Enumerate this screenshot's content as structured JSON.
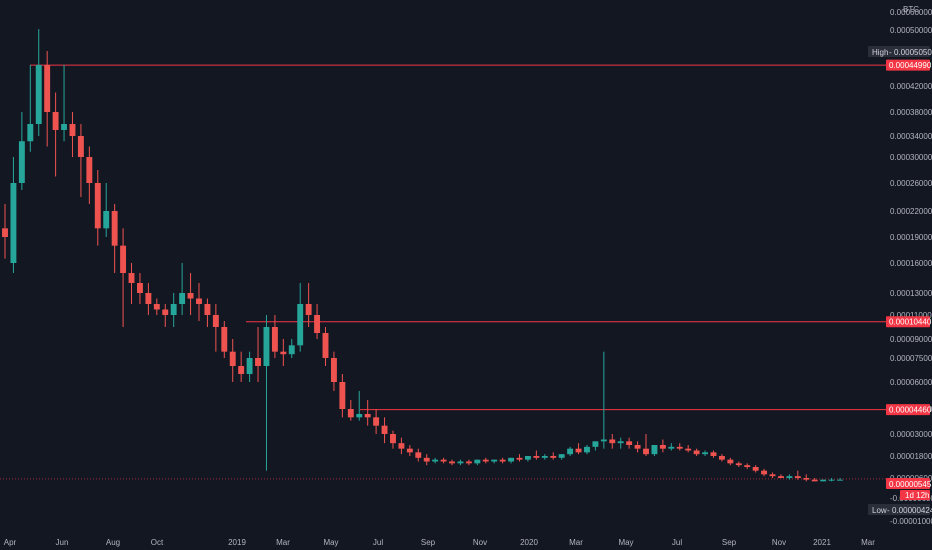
{
  "chart_data": {
    "type": "candlestick",
    "currency": "BTC",
    "x_ticks": [
      "Apr",
      "Jun",
      "Aug",
      "Oct",
      "2019",
      "Mar",
      "May",
      "Jul",
      "Sep",
      "Nov",
      "2020",
      "Mar",
      "May",
      "Jul",
      "Sep",
      "Nov",
      "2021",
      "Mar"
    ],
    "y_ticks": [
      "0.00060000",
      "0.00050000",
      "0.00042000",
      "0.00038000",
      "0.00034000",
      "0.00030000",
      "0.00026000",
      "0.00022000",
      "0.00019000",
      "0.00016000",
      "0.00013000",
      "0.00011000",
      "0.00009000",
      "0.00007500",
      "0.00006000",
      "0.00004500",
      "0.00003000",
      "0.00001800",
      "0.00000600",
      "-0.00000600",
      "-0.00001000"
    ],
    "high_label": "High",
    "high_value": "0.00050500",
    "low_label": "Low",
    "low_value": "0.00000424",
    "last_price": "0.00000545",
    "countdown": "1d 12h",
    "lines": [
      {
        "value": "0.00044990",
        "color": "#f23645"
      },
      {
        "value": "0.00010440",
        "color": "#f23645"
      },
      {
        "value": "0.00004460",
        "color": "#f23645"
      }
    ],
    "colors": {
      "up": "#26a69a",
      "down": "#ef5350",
      "background": "#131722",
      "last": "#f23645",
      "high_low_tag": "#2a2e39"
    },
    "candles": [
      [
        0.0002,
        0.00023,
        0.00019,
        0.000165
      ],
      [
        0.00016,
        0.0003,
        0.00026,
        0.00015
      ],
      [
        0.00026,
        0.00038,
        0.00033,
        0.00025
      ],
      [
        0.00033,
        0.00045,
        0.00036,
        0.00031
      ],
      [
        0.00036,
        0.000505,
        0.00045,
        0.00034
      ],
      [
        0.00045,
        0.00047,
        0.00038,
        0.00032
      ],
      [
        0.00038,
        0.00041,
        0.00035,
        0.00027
      ],
      [
        0.00035,
        0.00045,
        0.00036,
        0.00033
      ],
      [
        0.00036,
        0.00038,
        0.00034,
        0.0003
      ],
      [
        0.00034,
        0.00036,
        0.0003,
        0.00024
      ],
      [
        0.0003,
        0.00032,
        0.00026,
        0.00023
      ],
      [
        0.00026,
        0.00028,
        0.0002,
        0.00018
      ],
      [
        0.0002,
        0.00026,
        0.00022,
        0.00019
      ],
      [
        0.00022,
        0.00023,
        0.00018,
        0.00015
      ],
      [
        0.00018,
        0.0002,
        0.00015,
        0.0001
      ],
      [
        0.00015,
        0.00016,
        0.00014,
        0.00012
      ],
      [
        0.00014,
        0.00015,
        0.00013,
        0.00012
      ],
      [
        0.00013,
        0.00014,
        0.00012,
        0.00011
      ],
      [
        0.00012,
        0.000125,
        0.000115,
        0.00011
      ],
      [
        0.000115,
        0.00012,
        0.00011,
        0.0001
      ],
      [
        0.00011,
        0.00013,
        0.00012,
        0.0001
      ],
      [
        0.00012,
        0.00016,
        0.00013,
        0.00011
      ],
      [
        0.00013,
        0.00015,
        0.000125,
        0.00011
      ],
      [
        0.000125,
        0.00014,
        0.00012,
        0.000105
      ],
      [
        0.00012,
        0.000125,
        0.00011,
        0.0001
      ],
      [
        0.00011,
        0.00012,
        0.0001,
        8e-05
      ],
      [
        0.0001,
        0.000105,
        8e-05,
        7.5e-05
      ],
      [
        8e-05,
        9e-05,
        7e-05,
        6e-05
      ],
      [
        7e-05,
        8e-05,
        6.5e-05,
        6e-05
      ],
      [
        6.5e-05,
        8e-05,
        7.5e-05,
        6e-05
      ],
      [
        7.5e-05,
        0.0001,
        7e-05,
        6e-05
      ],
      [
        7e-05,
        0.00011,
        0.0001,
        1e-05
      ],
      [
        0.0001,
        0.00011,
        8e-05,
        7.5e-05
      ],
      [
        8e-05,
        9e-05,
        7.8e-05,
        7e-05
      ],
      [
        7.8e-05,
        9e-05,
        8.5e-05,
        7.5e-05
      ],
      [
        8.5e-05,
        0.00014,
        0.00012,
        8e-05
      ],
      [
        0.00012,
        0.00014,
        0.00011,
        0.0001
      ],
      [
        0.00011,
        0.00012,
        9.5e-05,
        9e-05
      ],
      [
        9.5e-05,
        0.0001,
        7.5e-05,
        7e-05
      ],
      [
        7.5e-05,
        8e-05,
        6e-05,
        5.5e-05
      ],
      [
        6e-05,
        6.5e-05,
        4.5e-05,
        4e-05
      ],
      [
        4.5e-05,
        5e-05,
        4e-05,
        3.8e-05
      ],
      [
        4e-05,
        5.5e-05,
        4.2e-05,
        3.8e-05
      ],
      [
        4.2e-05,
        5e-05,
        4e-05,
        3.5e-05
      ],
      [
        4e-05,
        4.5e-05,
        3.5e-05,
        3e-05
      ],
      [
        3.5e-05,
        4e-05,
        3e-05,
        2.5e-05
      ],
      [
        3e-05,
        3.2e-05,
        2.5e-05,
        2.2e-05
      ],
      [
        2.5e-05,
        2.8e-05,
        2.2e-05,
        1.9e-05
      ],
      [
        2.2e-05,
        2.4e-05,
        2e-05,
        1.8e-05
      ],
      [
        2e-05,
        2.2e-05,
        1.7e-05,
        1.5e-05
      ],
      [
        1.7e-05,
        1.9e-05,
        1.5e-05,
        1.3e-05
      ],
      [
        1.5e-05,
        1.7e-05,
        1.6e-05,
        1.4e-05
      ],
      [
        1.6e-05,
        1.7e-05,
        1.5e-05,
        1.4e-05
      ],
      [
        1.5e-05,
        1.6e-05,
        1.4e-05,
        1.3e-05
      ],
      [
        1.4e-05,
        1.6e-05,
        1.5e-05,
        1.3e-05
      ],
      [
        1.5e-05,
        1.6e-05,
        1.4e-05,
        1.3e-05
      ],
      [
        1.4e-05,
        1.6e-05,
        1.6e-05,
        1.3e-05
      ],
      [
        1.6e-05,
        1.7e-05,
        1.5e-05,
        1.4e-05
      ],
      [
        1.5e-05,
        1.6e-05,
        1.6e-05,
        1.4e-05
      ],
      [
        1.6e-05,
        1.7e-05,
        1.5e-05,
        1.4e-05
      ],
      [
        1.5e-05,
        1.7e-05,
        1.7e-05,
        1.4e-05
      ],
      [
        1.7e-05,
        1.9e-05,
        1.6e-05,
        1.5e-05
      ],
      [
        1.6e-05,
        1.8e-05,
        1.8e-05,
        1.5e-05
      ],
      [
        1.8e-05,
        2.1e-05,
        1.7e-05,
        1.6e-05
      ],
      [
        1.7e-05,
        1.9e-05,
        1.8e-05,
        1.6e-05
      ],
      [
        1.8e-05,
        2e-05,
        1.7e-05,
        1.6e-05
      ],
      [
        1.7e-05,
        1.9e-05,
        1.9e-05,
        1.6e-05
      ],
      [
        1.9e-05,
        2.3e-05,
        2.2e-05,
        1.8e-05
      ],
      [
        2.2e-05,
        2.5e-05,
        2e-05,
        1.9e-05
      ],
      [
        2e-05,
        2.4e-05,
        2.3e-05,
        1.9e-05
      ],
      [
        2.3e-05,
        2.6e-05,
        2.6e-05,
        2.1e-05
      ],
      [
        2.6e-05,
        8e-05,
        2.7e-05,
        2.2e-05
      ],
      [
        2.7e-05,
        3e-05,
        2.5e-05,
        2.2e-05
      ],
      [
        2.5e-05,
        2.8e-05,
        2.6e-05,
        2.2e-05
      ],
      [
        2.6e-05,
        2.8e-05,
        2.4e-05,
        2.2e-05
      ],
      [
        2.4e-05,
        2.6e-05,
        2.2e-05,
        2e-05
      ],
      [
        2.2e-05,
        3e-05,
        1.9e-05,
        1.8e-05
      ],
      [
        1.9e-05,
        2.2e-05,
        2.4e-05,
        1.8e-05
      ],
      [
        2.4e-05,
        2.7e-05,
        2.2e-05,
        2e-05
      ],
      [
        2.2e-05,
        2.5e-05,
        2.3e-05,
        2.1e-05
      ],
      [
        2.3e-05,
        2.5e-05,
        2.2e-05,
        2.1e-05
      ],
      [
        2.2e-05,
        2.4e-05,
        2.1e-05,
        2e-05
      ],
      [
        2.1e-05,
        2.2e-05,
        1.9e-05,
        1.8e-05
      ],
      [
        1.9e-05,
        2.1e-05,
        2e-05,
        1.8e-05
      ],
      [
        2e-05,
        2.1e-05,
        1.8e-05,
        1.7e-05
      ],
      [
        1.8e-05,
        1.9e-05,
        1.6e-05,
        1.5e-05
      ],
      [
        1.6e-05,
        1.7e-05,
        1.4e-05,
        1.3e-05
      ],
      [
        1.4e-05,
        1.5e-05,
        1.3e-05,
        1.2e-05
      ],
      [
        1.3e-05,
        1.4e-05,
        1.2e-05,
        1.1e-05
      ],
      [
        1.2e-05,
        1.3e-05,
        1e-05,
        9e-06
      ],
      [
        1e-05,
        1.1e-05,
        8e-06,
        7e-06
      ],
      [
        8e-06,
        9e-06,
        7e-06,
        6e-06
      ],
      [
        7e-06,
        8e-06,
        6e-06,
        6e-06
      ],
      [
        6e-06,
        8e-06,
        7e-06,
        5e-06
      ],
      [
        7e-06,
        1e-05,
        6e-06,
        5e-06
      ],
      [
        6e-06,
        8e-06,
        5e-06,
        4e-06
      ],
      [
        5e-06,
        6e-06,
        4e-06,
        4e-06
      ],
      [
        4e-06,
        5e-06,
        5e-06,
        4e-06
      ],
      [
        5e-06,
        6e-06,
        5e-06,
        4e-06
      ],
      [
        5e-06,
        6e-06,
        5e-06,
        5e-06
      ]
    ]
  }
}
